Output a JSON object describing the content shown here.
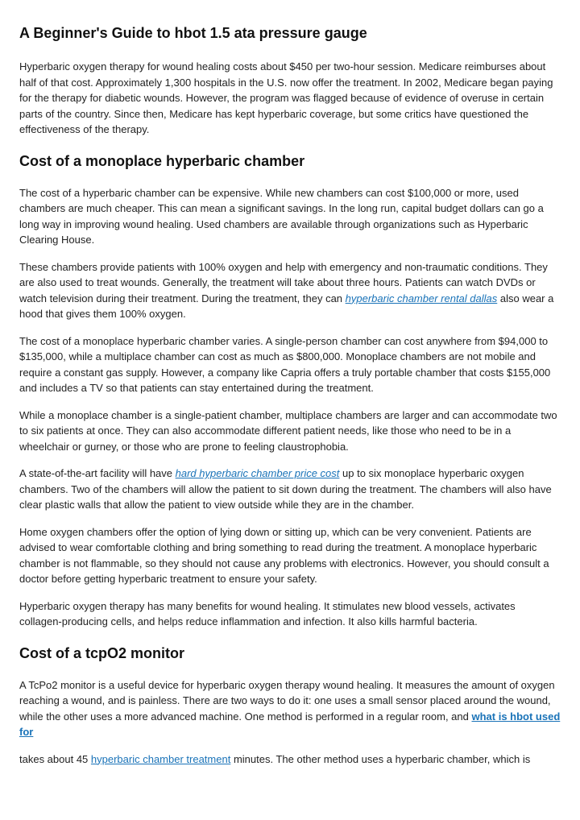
{
  "colors": {
    "text": "#222222",
    "heading": "#111111",
    "link": "#1a73b8",
    "background": "#ffffff"
  },
  "typography": {
    "body_fontsize": 13,
    "heading_fontsize": 18,
    "font_family": "Segoe UI"
  },
  "title": "A Beginner's Guide to hbot 1.5 ata pressure gauge",
  "intro": "Hyperbaric oxygen therapy for wound healing costs about $450 per two-hour session. Medicare reimburses about half of that cost. Approximately 1,300 hospitals in the U.S. now offer the treatment. In 2002, Medicare began paying for the therapy for diabetic wounds. However, the program was flagged because of evidence of overuse in certain parts of the country. Since then, Medicare has kept hyperbaric coverage, but some critics have questioned the effectiveness of the therapy.",
  "section1": {
    "heading": "Cost of a monoplace hyperbaric chamber",
    "p1": "The cost of a hyperbaric chamber can be expensive. While new chambers can cost $100,000 or more, used chambers are much cheaper. This can mean a significant savings. In the long run, capital budget dollars can go a long way in improving wound healing. Used chambers are available through organizations such as Hyperbaric Clearing House.",
    "p2a": "These chambers provide patients with 100% oxygen and help with emergency and non-traumatic conditions. They are also used to treat wounds. Generally, the treatment will take about three hours. Patients can watch DVDs or watch television during their treatment. During the treatment, they can ",
    "p2_link": "hyperbaric chamber rental dallas",
    "p2b": " also wear a hood that gives them 100% oxygen.",
    "p3": "The cost of a monoplace hyperbaric chamber varies. A single-person chamber can cost anywhere from $94,000 to $135,000, while a multiplace chamber can cost as much as $800,000. Monoplace chambers are not mobile and require a constant gas supply. However, a company like Capria offers a truly portable chamber that costs $155,000 and includes a TV so that patients can stay entertained during the treatment.",
    "p4": "While a monoplace chamber is a single-patient chamber, multiplace chambers are larger and can accommodate two to six patients at once. They can also accommodate different patient needs, like those who need to be in a wheelchair or gurney, or those who are prone to feeling claustrophobia.",
    "p5a": "A state-of-the-art facility will have ",
    "p5_link": "hard hyperbaric chamber price cost",
    "p5b": " up to six monoplace hyperbaric oxygen chambers. Two of the chambers will allow the patient to sit down during the treatment. The chambers will also have clear plastic walls that allow the patient to view outside while they are in the chamber.",
    "p6": "Home oxygen chambers offer the option of lying down or sitting up, which can be very convenient. Patients are advised to wear comfortable clothing and bring something to read during the treatment. A monoplace hyperbaric chamber is not flammable, so they should not cause any problems with electronics. However, you should consult a doctor before getting hyperbaric treatment to ensure your safety.",
    "p7": "Hyperbaric oxygen therapy has many benefits for wound healing. It stimulates new blood vessels, activates collagen-producing cells, and helps reduce inflammation and infection. It also kills harmful bacteria."
  },
  "section2": {
    "heading": "Cost of a tcpO2 monitor",
    "p1a": "A TcPo2 monitor is a useful device for hyperbaric oxygen therapy wound healing. It measures the amount of oxygen reaching a wound, and is painless. There are two ways to do it: one uses a small sensor placed around the wound, while the other uses a more advanced machine. One method is performed in a regular room, and ",
    "p1_link": "what is hbot used for",
    "p2a": "takes about 45 ",
    "p2_link": "hyperbaric chamber treatment",
    "p2b": " minutes. The other method uses a hyperbaric chamber, which is"
  }
}
